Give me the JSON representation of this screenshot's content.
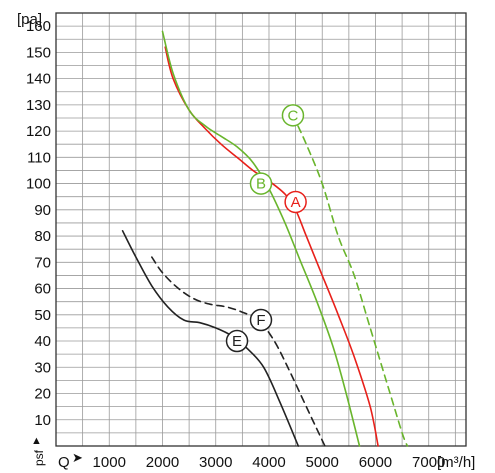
{
  "chart_data": {
    "type": "line",
    "y_unit": "[pa]",
    "x_unit": "[m³/h]",
    "x_axis_symbol": "Q",
    "y_axis_symbol": "psf",
    "xlim": [
      0,
      7700
    ],
    "ylim": [
      0,
      165
    ],
    "x_ticks": [
      1000,
      2000,
      3000,
      4000,
      5000,
      6000,
      7000
    ],
    "y_ticks": [
      10,
      20,
      30,
      40,
      50,
      60,
      70,
      80,
      90,
      100,
      110,
      120,
      130,
      140,
      150,
      160
    ],
    "grid": true,
    "series": [
      {
        "name": "A",
        "color": "#e8201a",
        "dashed": false,
        "label_at": [
          4500,
          93
        ],
        "points": [
          [
            2050,
            152
          ],
          [
            2200,
            140
          ],
          [
            2500,
            128
          ],
          [
            2800,
            121
          ],
          [
            3100,
            115
          ],
          [
            3400,
            110
          ],
          [
            3700,
            105
          ],
          [
            4000,
            101
          ],
          [
            4300,
            96
          ],
          [
            4500,
            90
          ],
          [
            4700,
            80
          ],
          [
            5000,
            65
          ],
          [
            5300,
            50
          ],
          [
            5600,
            34
          ],
          [
            5900,
            15
          ],
          [
            6050,
            0
          ]
        ]
      },
      {
        "name": "B",
        "color": "#69b52c",
        "dashed": false,
        "label_at": [
          3850,
          100
        ],
        "points": [
          [
            2000,
            158
          ],
          [
            2200,
            142
          ],
          [
            2500,
            128
          ],
          [
            2800,
            122
          ],
          [
            3100,
            118
          ],
          [
            3400,
            114
          ],
          [
            3700,
            108
          ],
          [
            4000,
            98
          ],
          [
            4300,
            85
          ],
          [
            4600,
            70
          ],
          [
            4900,
            55
          ],
          [
            5200,
            38
          ],
          [
            5450,
            20
          ],
          [
            5700,
            0
          ]
        ]
      },
      {
        "name": "C",
        "color": "#69b52c",
        "dashed": true,
        "label_at": [
          4450,
          126
        ],
        "points": [
          [
            4450,
            126
          ],
          [
            4700,
            115
          ],
          [
            5000,
            100
          ],
          [
            5300,
            80
          ],
          [
            5600,
            65
          ],
          [
            5900,
            45
          ],
          [
            6200,
            25
          ],
          [
            6500,
            5
          ],
          [
            6600,
            0
          ]
        ]
      },
      {
        "name": "E",
        "color": "#222222",
        "dashed": false,
        "label_at": [
          3400,
          40
        ],
        "points": [
          [
            1250,
            82
          ],
          [
            1500,
            72
          ],
          [
            1800,
            61
          ],
          [
            2100,
            53
          ],
          [
            2400,
            48
          ],
          [
            2700,
            47
          ],
          [
            3000,
            45
          ],
          [
            3300,
            42
          ],
          [
            3600,
            37
          ],
          [
            3900,
            30
          ],
          [
            4200,
            17
          ],
          [
            4550,
            0
          ]
        ]
      },
      {
        "name": "F",
        "color": "#222222",
        "dashed": true,
        "label_at": [
          3850,
          48
        ],
        "points": [
          [
            1800,
            72
          ],
          [
            2000,
            66
          ],
          [
            2300,
            60
          ],
          [
            2600,
            56
          ],
          [
            2900,
            54
          ],
          [
            3200,
            53
          ],
          [
            3500,
            51
          ],
          [
            3800,
            48
          ],
          [
            4100,
            40
          ],
          [
            4400,
            28
          ],
          [
            4700,
            15
          ],
          [
            5050,
            0
          ]
        ]
      }
    ]
  }
}
